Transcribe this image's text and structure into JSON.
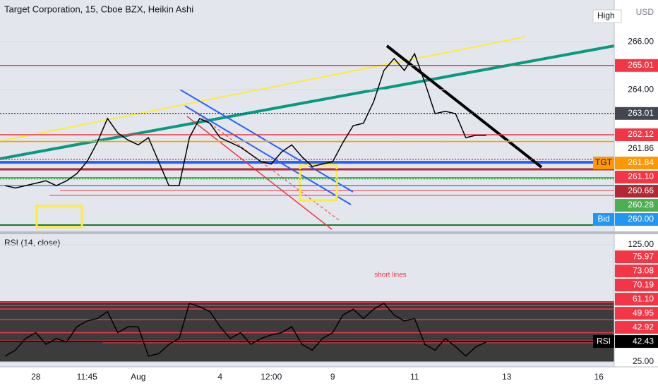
{
  "chart_data": [
    {
      "type": "line",
      "title": "Target Corporation, 15, Cboe BZX, Heikin Ashi",
      "currency": "USD",
      "high_tag": "High",
      "color": "#000000",
      "categories": [
        null,
        null,
        null,
        "28",
        null,
        null,
        null,
        null,
        "11:45",
        null,
        null,
        null,
        null,
        "Aug",
        null,
        null,
        null,
        null,
        null,
        null,
        null,
        "4",
        null,
        null,
        null,
        null,
        "12:00",
        null,
        null,
        null,
        null,
        null,
        "9",
        null,
        null,
        null,
        null,
        null,
        null,
        null,
        "11",
        null,
        null,
        null,
        null,
        null,
        null,
        null,
        null,
        "13",
        null,
        null,
        null,
        null,
        null,
        null,
        null,
        null,
        "16",
        null
      ],
      "values": [
        260.0,
        259.9,
        260.0,
        260.1,
        260.2,
        260.0,
        260.2,
        260.5,
        261.0,
        261.8,
        262.8,
        262.2,
        261.9,
        261.7,
        262.0,
        261.0,
        260.0,
        260.0,
        262.0,
        262.8,
        262.6,
        262.0,
        261.8,
        261.6,
        261.3,
        261.0,
        260.9,
        261.4,
        261.7,
        261.2,
        260.8,
        260.9,
        261.0,
        261.8,
        262.5,
        262.6,
        263.5,
        264.8,
        265.3,
        264.8,
        265.5,
        264.3,
        263.0,
        263.1,
        263.0,
        262.0,
        262.1,
        262.1,
        null,
        null,
        null,
        null,
        null,
        null,
        null,
        null,
        null,
        null,
        null,
        null
      ],
      "ylim": [
        258.18,
        267.74
      ],
      "yticks": [
        {
          "value": 264,
          "label": "264.00"
        },
        {
          "value": 266,
          "label": "266.00"
        }
      ],
      "levels": [
        {
          "value": 265.01,
          "label": "265.01",
          "color": "#f23645"
        },
        {
          "value": 263.01,
          "label": "263.01",
          "color": "#434651"
        },
        {
          "value": 262.12,
          "label": "262.12",
          "color": "#f23645"
        },
        {
          "value": 261.86,
          "label": "261.86",
          "color": "#f0e68c"
        },
        {
          "value": 261.84,
          "label": "261.84",
          "tag": "TGT",
          "color": "#ff9800"
        },
        {
          "value": 261.1,
          "label": "261.10",
          "color": "#f23645"
        },
        {
          "value": 260.66,
          "label": "260.66",
          "color": "#b22833"
        },
        {
          "value": 260.28,
          "label": "260.28",
          "color": "#4caf50"
        },
        {
          "value": 260.0,
          "label": "260.00",
          "tag": "Bid",
          "color": "#2196f3"
        }
      ]
    },
    {
      "type": "line",
      "title": "RSI (14, close)",
      "annotation": "short lines",
      "color": "#000000",
      "values": [
        30,
        35,
        45,
        50,
        40,
        45,
        42,
        55,
        60,
        62,
        68,
        50,
        55,
        55,
        30,
        32,
        40,
        45,
        75,
        72,
        68,
        55,
        45,
        50,
        40,
        45,
        48,
        50,
        55,
        40,
        35,
        45,
        50,
        65,
        70,
        62,
        70,
        75,
        65,
        60,
        62,
        40,
        35,
        45,
        38,
        30,
        38,
        42,
        null,
        null,
        null,
        null,
        null,
        null,
        null,
        null,
        null,
        null,
        null,
        null
      ],
      "ylim": [
        20.8,
        132.2
      ],
      "yticks": [
        {
          "value": 25,
          "label": "25.00"
        },
        {
          "value": 125,
          "label": "125.00"
        }
      ],
      "levels": [
        {
          "value": 75.97,
          "label": "75.97",
          "color": "#f23645"
        },
        {
          "value": 73.08,
          "label": "73.08",
          "color": "#f23645"
        },
        {
          "value": 70.19,
          "label": "70.19",
          "color": "#f23645"
        },
        {
          "value": 61.1,
          "label": "61.10",
          "color": "#f23645"
        },
        {
          "value": 49.95,
          "label": "49.95",
          "color": "#f23645"
        },
        {
          "value": 42.92,
          "label": "42.92",
          "color": "#f23645"
        },
        {
          "value": 42.43,
          "label": "42.43",
          "tag": "RSI",
          "color": "#000000"
        }
      ]
    }
  ]
}
